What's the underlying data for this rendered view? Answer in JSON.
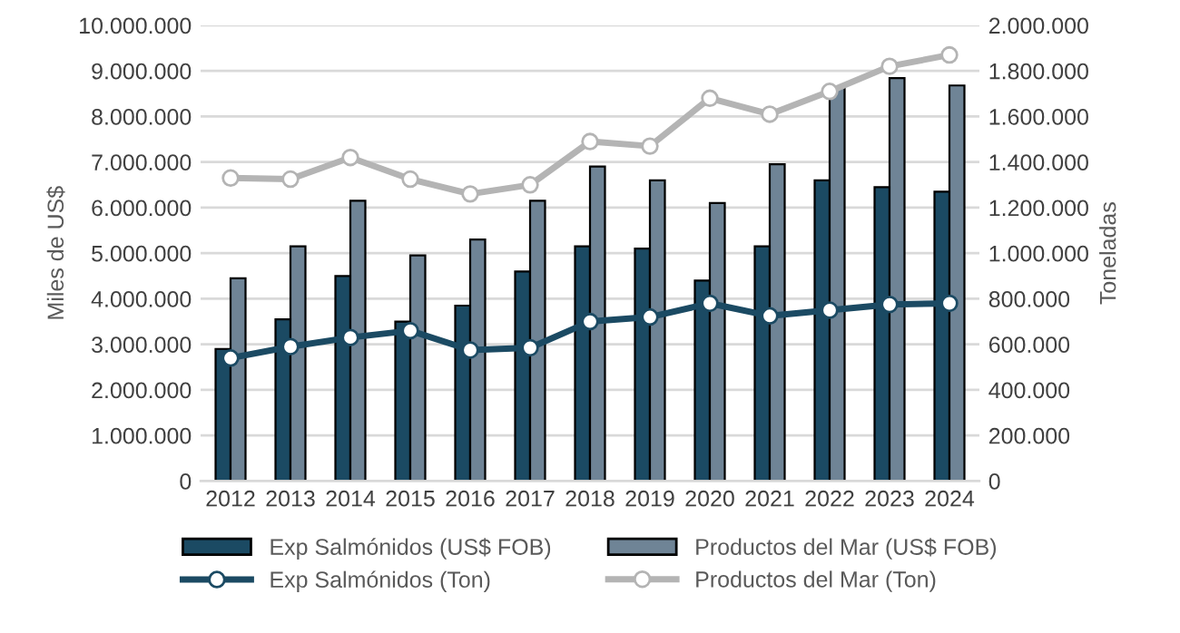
{
  "chart_data": {
    "type": "bar",
    "categories": [
      "2012",
      "2013",
      "2014",
      "2015",
      "2016",
      "2017",
      "2018",
      "2019",
      "2020",
      "2021",
      "2022",
      "2023",
      "2024"
    ],
    "ylabel": "Miles de US$",
    "y2label": "Toneladas",
    "series": [
      {
        "name": "Exp Salmónidos (US$ FOB)",
        "color": "#1b4a63",
        "values": [
          2900000,
          3550000,
          4500000,
          3500000,
          3850000,
          4600000,
          5150000,
          5100000,
          4400000,
          5150000,
          6600000,
          6450000,
          6350000
        ]
      },
      {
        "name": "Productos del Mar (US$ FOB)",
        "color": "#6f8496",
        "values": [
          4450000,
          5150000,
          6150000,
          4950000,
          5300000,
          6150000,
          6900000,
          6600000,
          6100000,
          6950000,
          8650000,
          8840000,
          8680000
        ]
      },
      {
        "name": "Exp Salmónidos (Ton)",
        "type": "line",
        "axis": "y2",
        "color": "#1b4a63",
        "marker": "circle",
        "values": [
          540000,
          590000,
          630000,
          660000,
          575000,
          585000,
          700000,
          720000,
          780000,
          725000,
          750000,
          775000,
          780000
        ]
      },
      {
        "name": "Productos del Mar (Ton)",
        "type": "line",
        "axis": "y2",
        "color": "#b4b4b4",
        "marker": "circle",
        "values": [
          1330000,
          1325000,
          1420000,
          1325000,
          1260000,
          1300000,
          1490000,
          1470000,
          1680000,
          1610000,
          1710000,
          1820000,
          1870000
        ]
      }
    ],
    "ylim": [
      0,
      10000000
    ],
    "yticks": [
      0,
      {
        "value": 1000000,
        "label": "1.000.000"
      },
      {
        "value": 2000000,
        "label": "2.000.000"
      },
      {
        "value": 3000000,
        "label": "3.000.000"
      },
      {
        "value": 4000000,
        "label": "4.000.000"
      },
      {
        "value": 5000000,
        "label": "5.000.000"
      },
      {
        "value": 6000000,
        "label": "6.000.000"
      },
      {
        "value": 7000000,
        "label": "7.000.000"
      },
      {
        "value": 8000000,
        "label": "8.000.000"
      },
      {
        "value": 9000000,
        "label": "9.000.000"
      },
      {
        "value": 10000000,
        "label": "10.000.000"
      }
    ],
    "y2lim": [
      0,
      2000000
    ],
    "y2ticks": [
      0,
      {
        "value": 200000,
        "label": "200.000"
      },
      {
        "value": 400000,
        "label": "400.000"
      },
      {
        "value": 600000,
        "label": "600.000"
      },
      {
        "value": 800000,
        "label": "800.000"
      },
      {
        "value": 1000000,
        "label": "1.000.000"
      },
      {
        "value": 1200000,
        "label": "1.200.000"
      },
      {
        "value": 1400000,
        "label": "1.400.000"
      },
      {
        "value": 1600000,
        "label": "1.600.000"
      },
      {
        "value": 1800000,
        "label": "1.800.000"
      },
      {
        "value": 2000000,
        "label": "2.000.000"
      }
    ],
    "grid": "y",
    "legend": "bottom"
  }
}
